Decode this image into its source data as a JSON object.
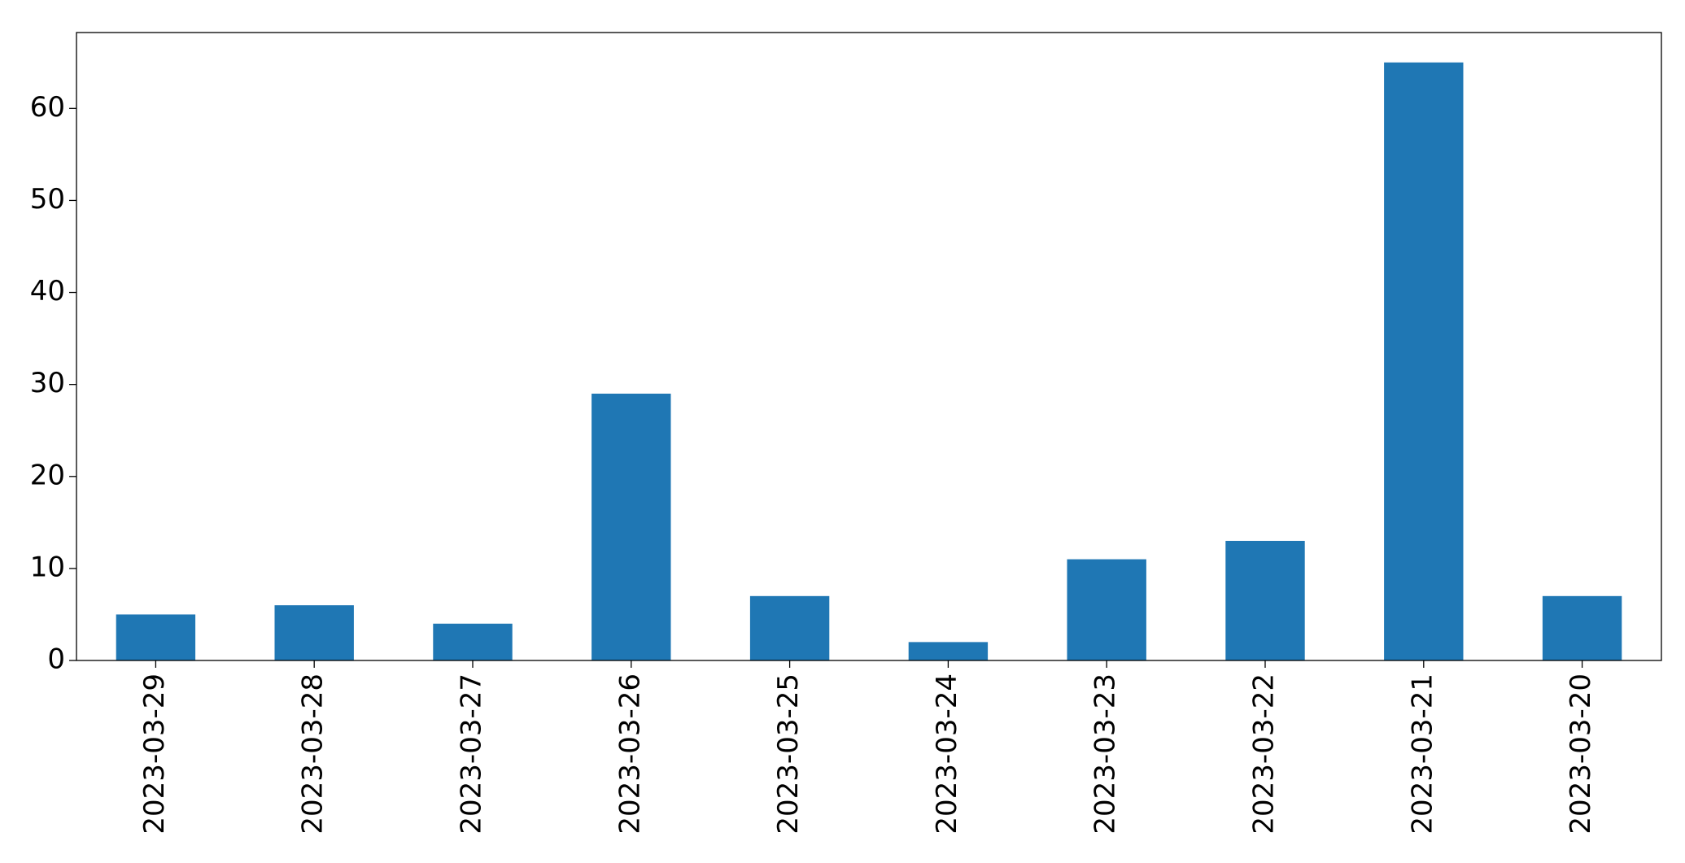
{
  "chart_data": {
    "type": "bar",
    "categories": [
      "2023-03-29",
      "2023-03-28",
      "2023-03-27",
      "2023-03-26",
      "2023-03-25",
      "2023-03-24",
      "2023-03-23",
      "2023-03-22",
      "2023-03-21",
      "2023-03-20"
    ],
    "values": [
      5,
      6,
      4,
      29,
      7,
      2,
      11,
      13,
      65,
      7
    ],
    "color": "#1f77b4",
    "ylim": [
      0,
      68.25
    ],
    "yticks": [
      0,
      10,
      20,
      30,
      40,
      50,
      60
    ],
    "grid": false
  }
}
